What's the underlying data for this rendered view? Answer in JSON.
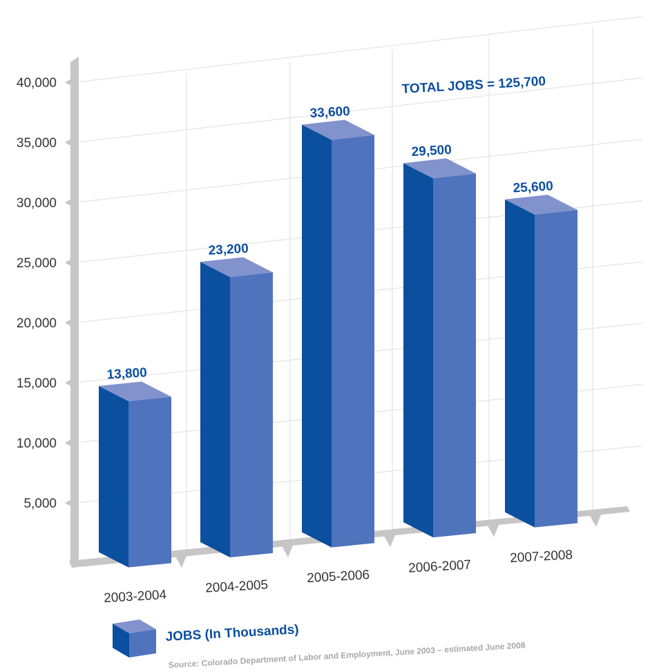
{
  "chart_data": {
    "type": "bar",
    "categories": [
      "2003-2004",
      "2004-2005",
      "2005-2006",
      "2006-2007",
      "2007-2008"
    ],
    "values": [
      13800,
      23200,
      33600,
      29500,
      25600
    ],
    "data_labels": [
      "13,800",
      "23,200",
      "33,600",
      "29,500",
      "25,600"
    ],
    "yticks": [
      5000,
      10000,
      15000,
      20000,
      25000,
      30000,
      35000,
      40000
    ],
    "ytick_labels": [
      "5,000",
      "10,000",
      "15,000",
      "20,000",
      "25,000",
      "30,000",
      "35,000",
      "40,000"
    ],
    "ylim": [
      0,
      40000
    ],
    "grid": true,
    "legend": {
      "label": "JOBS (In Thousands)",
      "placement": "bottom-left"
    },
    "annotation": "TOTAL JOBS = 125,700",
    "source": "Source: Colorado Department of Labor and Employment, June 2003 – estimated June 2008",
    "colors": {
      "bar_front": "#4f73bd",
      "bar_side": "#0b4f9f",
      "bar_top": "#8192cd",
      "label": "#0b4f9f",
      "grid": "#dddddd",
      "axis": "#c6c6c6"
    }
  }
}
